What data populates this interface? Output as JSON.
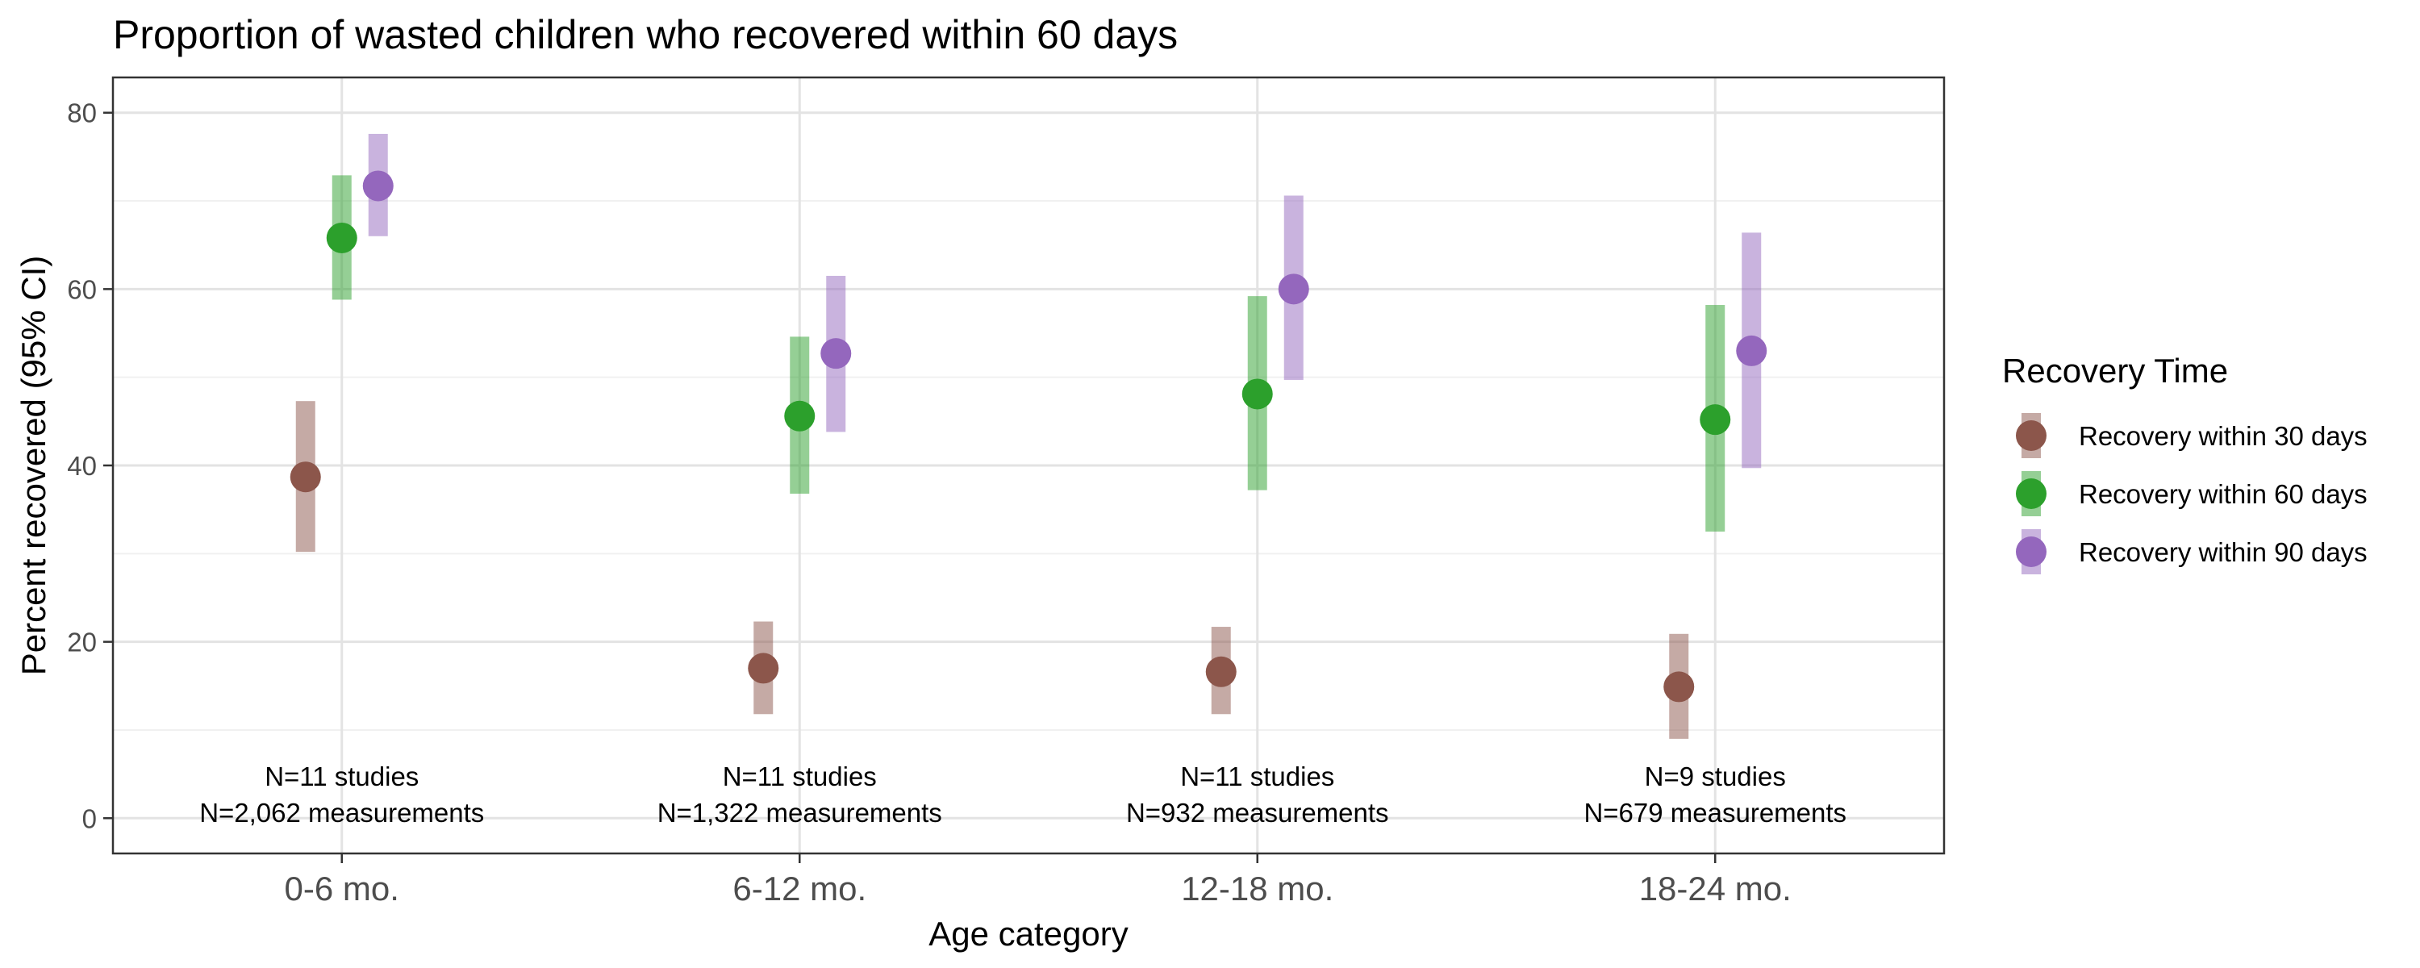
{
  "chart_data": {
    "type": "scatter",
    "title": "Proportion of wasted children who recovered within 60 days",
    "xlabel": "Age category",
    "ylabel": "Percent recovered (95% CI)",
    "ylim": [
      -4,
      84
    ],
    "yticks": [
      0,
      20,
      40,
      60,
      80
    ],
    "ytick_labels": [
      "0",
      "20",
      "40",
      "60",
      "80"
    ],
    "grid": true,
    "categories": [
      "0-6 mo.",
      "6-12 mo.",
      "12-18 mo.",
      "18-24 mo."
    ],
    "legend": {
      "title": "Recovery Time",
      "position": "right"
    },
    "series": [
      {
        "name": "Recovery within 30 days",
        "color": "#8C564B",
        "values": [
          38.7,
          17.0,
          16.6,
          14.9
        ],
        "ci_lower": [
          30.2,
          11.8,
          11.8,
          9.0
        ],
        "ci_upper": [
          47.3,
          22.3,
          21.7,
          20.9
        ]
      },
      {
        "name": "Recovery within 60 days",
        "color": "#2CA02C",
        "values": [
          65.8,
          45.6,
          48.1,
          45.2
        ],
        "ci_lower": [
          58.8,
          36.8,
          37.2,
          32.5
        ],
        "ci_upper": [
          72.9,
          54.6,
          59.2,
          58.2
        ]
      },
      {
        "name": "Recovery within 90 days",
        "color": "#9467BD",
        "values": [
          71.7,
          52.7,
          60.0,
          53.0
        ],
        "ci_lower": [
          66.0,
          43.8,
          49.7,
          39.7
        ],
        "ci_upper": [
          77.6,
          61.5,
          70.6,
          66.4
        ]
      }
    ],
    "annotations": [
      [
        "N=11 studies",
        "N=2,062  measurements"
      ],
      [
        "N=11 studies",
        "N=1,322  measurements"
      ],
      [
        "N=11 studies",
        "N=932  measurements"
      ],
      [
        "N=9 studies",
        "N=679  measurements"
      ]
    ]
  }
}
